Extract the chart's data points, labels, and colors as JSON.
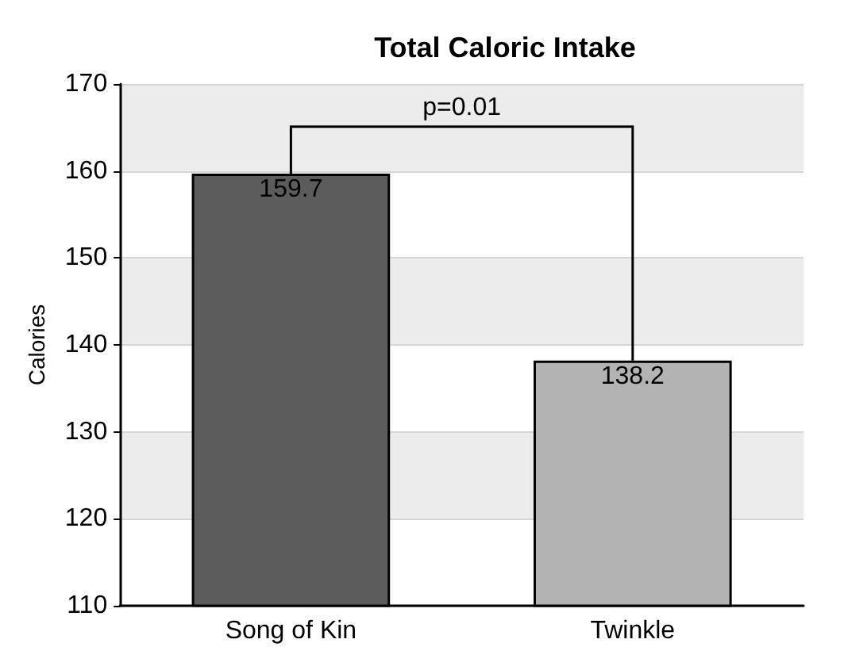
{
  "chart_data": {
    "type": "bar",
    "title": "Total Caloric Intake",
    "ylabel": "Calories",
    "categories": [
      "Song of Kin",
      "Twinkle"
    ],
    "values": [
      159.7,
      138.2
    ],
    "colors": [
      "#5c5c5c",
      "#b3b3b3"
    ],
    "ylim": [
      110,
      170
    ],
    "yticks": [
      110,
      120,
      130,
      140,
      150,
      160,
      170
    ],
    "grid": "y",
    "data_labels": true,
    "annotations": [
      "p=0.01"
    ]
  }
}
